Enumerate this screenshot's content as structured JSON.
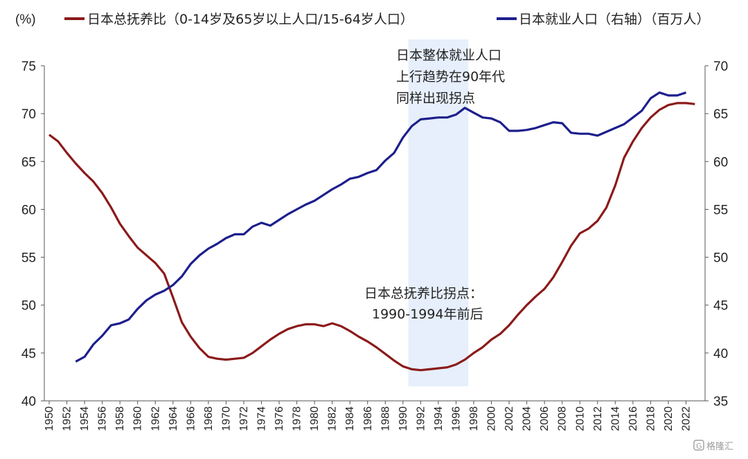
{
  "chart_data": {
    "type": "line",
    "unit_label": "(%)",
    "legend": {
      "placement": "top",
      "entries": [
        {
          "name": "日本总抚养比（0-14岁及65岁以上人口/15-64岁人口）",
          "color": "#8b1a1a"
        },
        {
          "name": "日本就业人口（右轴）（百万人）",
          "color": "#1c1f8c"
        }
      ]
    },
    "y_left": {
      "min": 40,
      "max": 75,
      "ticks": [
        40,
        45,
        50,
        55,
        60,
        65,
        70,
        75
      ]
    },
    "y_right": {
      "min": 35,
      "max": 70,
      "ticks": [
        35,
        40,
        45,
        50,
        55,
        60,
        65,
        70
      ]
    },
    "x_ticks": [
      "1950",
      "1952",
      "1954",
      "1956",
      "1958",
      "1960",
      "1962",
      "1964",
      "1966",
      "1968",
      "1970",
      "1972",
      "1974",
      "1976",
      "1978",
      "1980",
      "1982",
      "1984",
      "1986",
      "1988",
      "1990",
      "1992",
      "1994",
      "1996",
      "1998",
      "2000",
      "2002",
      "2004",
      "2006",
      "2008",
      "2010",
      "2012",
      "2014",
      "2016",
      "2018",
      "2020",
      "2022"
    ],
    "highlight": {
      "from": 1991,
      "to": 1997,
      "color": "#e6effb"
    },
    "annotations": [
      {
        "id": "employment",
        "lines": [
          "日本整体就业人口",
          "上行趋势在90年代",
          "同样出现拐点"
        ]
      },
      {
        "id": "dependency",
        "lines": [
          "日本总抚养比拐点：",
          "1990-1994年前后"
        ]
      }
    ],
    "series": [
      {
        "name": "日本总抚养比（0-14岁及65岁以上人口/15-64岁人口）",
        "axis": "left",
        "color": "#8b1a1a",
        "x": [
          1950,
          1951,
          1952,
          1953,
          1954,
          1955,
          1956,
          1957,
          1958,
          1959,
          1960,
          1961,
          1962,
          1963,
          1964,
          1965,
          1966,
          1967,
          1968,
          1969,
          1970,
          1971,
          1972,
          1973,
          1974,
          1975,
          1976,
          1977,
          1978,
          1979,
          1980,
          1981,
          1982,
          1983,
          1984,
          1985,
          1986,
          1987,
          1988,
          1989,
          1990,
          1991,
          1992,
          1993,
          1994,
          1995,
          1996,
          1997,
          1998,
          1999,
          2000,
          2001,
          2002,
          2003,
          2004,
          2005,
          2006,
          2007,
          2008,
          2009,
          2010,
          2011,
          2012,
          2013,
          2014,
          2015,
          2016,
          2017,
          2018,
          2019,
          2020,
          2021,
          2022,
          2023
        ],
        "values": [
          67.8,
          67.1,
          65.9,
          64.8,
          63.8,
          62.9,
          61.7,
          60.2,
          58.5,
          57.2,
          56.0,
          55.2,
          54.4,
          53.3,
          50.8,
          48.2,
          46.7,
          45.5,
          44.6,
          44.4,
          44.3,
          44.4,
          44.5,
          45.0,
          45.7,
          46.4,
          47.0,
          47.5,
          47.8,
          48.0,
          48.0,
          47.8,
          48.1,
          47.8,
          47.3,
          46.7,
          46.2,
          45.6,
          44.9,
          44.2,
          43.6,
          43.3,
          43.2,
          43.3,
          43.4,
          43.5,
          43.8,
          44.3,
          45.0,
          45.6,
          46.4,
          47.0,
          47.9,
          49.0,
          50.0,
          50.9,
          51.7,
          52.9,
          54.5,
          56.2,
          57.5,
          58.0,
          58.8,
          60.2,
          62.5,
          65.4,
          67.1,
          68.5,
          69.6,
          70.4,
          70.9,
          71.1,
          71.1,
          71.0
        ]
      },
      {
        "name": "日本就业人口（右轴）（百万人）",
        "axis": "right",
        "color": "#1c1f8c",
        "x": [
          1953,
          1954,
          1955,
          1956,
          1957,
          1958,
          1959,
          1960,
          1961,
          1962,
          1963,
          1964,
          1965,
          1966,
          1967,
          1968,
          1969,
          1970,
          1971,
          1972,
          1973,
          1974,
          1975,
          1976,
          1977,
          1978,
          1979,
          1980,
          1981,
          1982,
          1983,
          1984,
          1985,
          1986,
          1987,
          1988,
          1989,
          1990,
          1991,
          1992,
          1993,
          1994,
          1995,
          1996,
          1997,
          1998,
          1999,
          2000,
          2001,
          2002,
          2003,
          2004,
          2005,
          2006,
          2007,
          2008,
          2009,
          2010,
          2011,
          2012,
          2013,
          2014,
          2015,
          2016,
          2017,
          2018,
          2019,
          2020,
          2021,
          2022
        ],
        "values": [
          39.1,
          39.6,
          40.9,
          41.8,
          42.9,
          43.1,
          43.5,
          44.6,
          45.5,
          46.1,
          46.5,
          47.1,
          48.0,
          49.3,
          50.2,
          50.9,
          51.4,
          52.0,
          52.4,
          52.4,
          53.2,
          53.6,
          53.3,
          53.9,
          54.5,
          55.0,
          55.5,
          55.9,
          56.5,
          57.1,
          57.6,
          58.2,
          58.4,
          58.8,
          59.1,
          60.1,
          60.9,
          62.5,
          63.7,
          64.4,
          64.5,
          64.6,
          64.6,
          64.9,
          65.6,
          65.1,
          64.6,
          64.5,
          64.1,
          63.2,
          63.2,
          63.3,
          63.5,
          63.8,
          64.1,
          64.0,
          63.0,
          62.9,
          62.9,
          62.7,
          63.1,
          63.5,
          63.9,
          64.6,
          65.3,
          66.6,
          67.2,
          66.9,
          66.9,
          67.2
        ]
      }
    ]
  },
  "watermark": {
    "icon": "g-logo-icon",
    "text": "格隆汇"
  }
}
